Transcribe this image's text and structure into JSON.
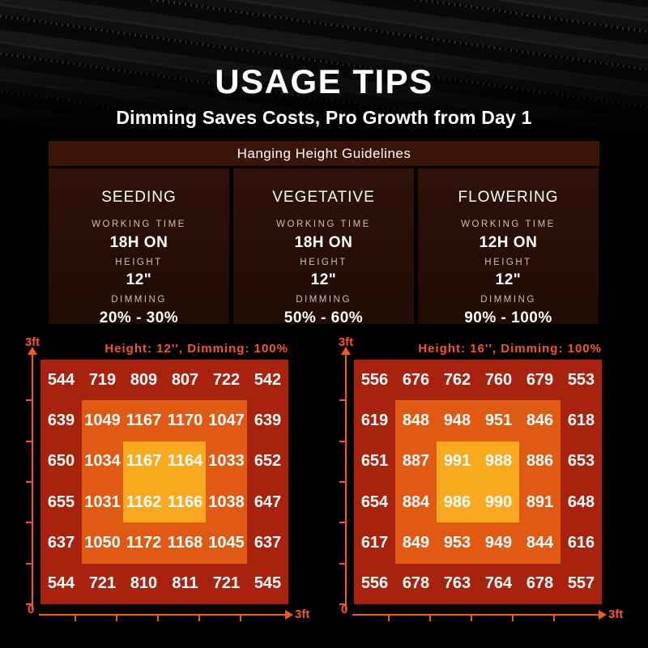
{
  "colors": {
    "background": "#000000",
    "accent_orange": "#f4581c",
    "heatmap_outer": "#a8220e",
    "heatmap_middle": "#e05a14",
    "heatmap_center": "#f9a91e",
    "panel_header_bg": "#3a1409",
    "panel_column_bg_top": "#2f1209",
    "panel_column_bg_bottom": "#200b05",
    "label_gray": "#c6c1bd",
    "text_white": "#ffffff"
  },
  "hero": {
    "title": "USAGE TIPS",
    "subtitle": "Dimming Saves Costs, Pro Growth from Day 1"
  },
  "guidelines": {
    "title": "Hanging Height Guidelines",
    "columns": [
      {
        "stage": "SEEDING",
        "fields": [
          {
            "label": "WORKING TIME",
            "value": "18H ON"
          },
          {
            "label": "HEIGHT",
            "value": "12\""
          },
          {
            "label": "DIMMING",
            "value": "20% - 30%"
          }
        ]
      },
      {
        "stage": "VEGETATIVE",
        "fields": [
          {
            "label": "WORKING TIME",
            "value": "18H ON"
          },
          {
            "label": "HEIGHT",
            "value": "12\""
          },
          {
            "label": "DIMMING",
            "value": "50% - 60%"
          }
        ]
      },
      {
        "stage": "FLOWERING",
        "fields": [
          {
            "label": "WORKING TIME",
            "value": "12H ON"
          },
          {
            "label": "HEIGHT",
            "value": "12\""
          },
          {
            "label": "DIMMING",
            "value": "90% - 100%"
          }
        ]
      }
    ]
  },
  "chart_data": [
    {
      "type": "heatmap",
      "title": "Height: 12'', Dimming: 100%",
      "grid": "6x6",
      "x_axis": {
        "origin_label": "0",
        "end_label": "3ft"
      },
      "y_axis": {
        "end_label": "3ft"
      },
      "rows": [
        [
          544,
          719,
          809,
          807,
          722,
          542
        ],
        [
          639,
          1049,
          1167,
          1170,
          1047,
          639
        ],
        [
          650,
          1034,
          1167,
          1164,
          1033,
          652
        ],
        [
          655,
          1031,
          1162,
          1166,
          1038,
          647
        ],
        [
          637,
          1050,
          1172,
          1168,
          1045,
          637
        ],
        [
          544,
          721,
          810,
          811,
          721,
          545
        ]
      ],
      "zone_colors": {
        "outer": "#a8220e",
        "middle": "#e05a14",
        "center": "#f9a91e"
      }
    },
    {
      "type": "heatmap",
      "title": "Height: 16'', Dimming: 100%",
      "grid": "6x6",
      "x_axis": {
        "origin_label": "0",
        "end_label": "3ft"
      },
      "y_axis": {
        "end_label": "3ft"
      },
      "rows": [
        [
          556,
          676,
          762,
          760,
          679,
          553
        ],
        [
          619,
          848,
          948,
          951,
          846,
          618
        ],
        [
          651,
          887,
          991,
          988,
          886,
          653
        ],
        [
          654,
          884,
          986,
          990,
          891,
          648
        ],
        [
          617,
          849,
          953,
          949,
          844,
          616
        ],
        [
          556,
          678,
          763,
          764,
          678,
          557
        ]
      ],
      "zone_colors": {
        "outer": "#a8220e",
        "middle": "#e05a14",
        "center": "#f9a91e"
      }
    }
  ]
}
